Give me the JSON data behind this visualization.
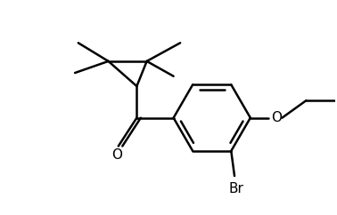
{
  "bg_color": "#ffffff",
  "line_color": "#000000",
  "line_width": 1.8,
  "figsize": [
    3.78,
    2.42
  ],
  "dpi": 100,
  "xlim": [
    0,
    10
  ],
  "ylim": [
    0,
    6.42
  ]
}
